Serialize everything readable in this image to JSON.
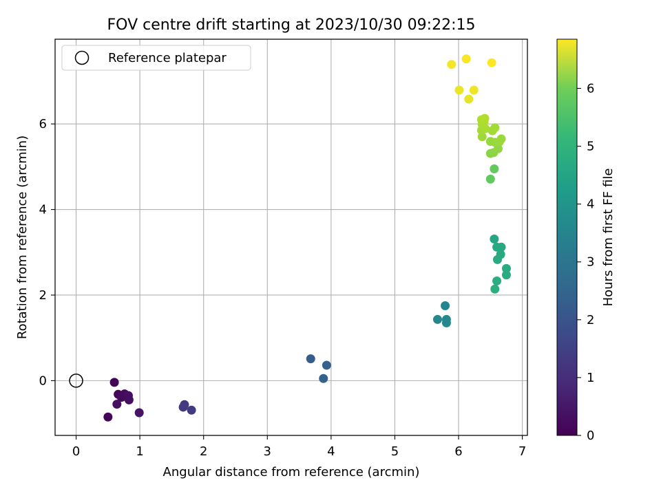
{
  "chart_data": {
    "type": "scatter",
    "title": "FOV centre drift starting at 2023/10/30 09:22:15",
    "xlabel": "Angular distance from reference (arcmin)",
    "ylabel": "Rotation from reference (arcmin)",
    "xlim": [
      -0.33,
      7.08
    ],
    "ylim": [
      -1.28,
      7.98
    ],
    "xticks": [
      0,
      1,
      2,
      3,
      4,
      5,
      6,
      7
    ],
    "yticks": [
      0,
      2,
      4,
      6
    ],
    "grid": true,
    "legend": {
      "placement": "upper-left",
      "entries": [
        "Reference platepar"
      ]
    },
    "reference_point": {
      "x": 0,
      "y": 0,
      "label": "Reference platepar"
    },
    "colorbar": {
      "label": "Hours from first FF file",
      "colormap": "viridis",
      "range": [
        0,
        6.85
      ],
      "ticks": [
        0,
        1,
        2,
        3,
        4,
        5,
        6
      ]
    },
    "points": [
      {
        "x": 0.6,
        "y": -0.04,
        "h": 0.05
      },
      {
        "x": 0.66,
        "y": -0.32,
        "h": 0.1
      },
      {
        "x": 0.71,
        "y": -0.39,
        "h": 0.15
      },
      {
        "x": 0.76,
        "y": -0.31,
        "h": 0.2
      },
      {
        "x": 0.82,
        "y": -0.35,
        "h": 0.25
      },
      {
        "x": 0.83,
        "y": -0.45,
        "h": 0.28
      },
      {
        "x": 0.64,
        "y": -0.55,
        "h": 0.3
      },
      {
        "x": 0.5,
        "y": -0.85,
        "h": 0.08
      },
      {
        "x": 0.99,
        "y": -0.75,
        "h": 0.35
      },
      {
        "x": 1.7,
        "y": -0.56,
        "h": 1.1
      },
      {
        "x": 1.68,
        "y": -0.62,
        "h": 1.15
      },
      {
        "x": 1.81,
        "y": -0.69,
        "h": 1.2
      },
      {
        "x": 3.68,
        "y": 0.51,
        "h": 2.05
      },
      {
        "x": 3.93,
        "y": 0.36,
        "h": 2.1
      },
      {
        "x": 3.88,
        "y": 0.05,
        "h": 2.15
      },
      {
        "x": 5.79,
        "y": 1.75,
        "h": 3.1
      },
      {
        "x": 5.67,
        "y": 1.43,
        "h": 3.15
      },
      {
        "x": 5.81,
        "y": 1.43,
        "h": 3.2
      },
      {
        "x": 5.81,
        "y": 1.35,
        "h": 3.22
      },
      {
        "x": 6.56,
        "y": 3.31,
        "h": 4.05
      },
      {
        "x": 6.6,
        "y": 3.12,
        "h": 4.1
      },
      {
        "x": 6.67,
        "y": 3.12,
        "h": 4.12
      },
      {
        "x": 6.66,
        "y": 2.95,
        "h": 4.15
      },
      {
        "x": 6.61,
        "y": 2.83,
        "h": 4.18
      },
      {
        "x": 6.75,
        "y": 2.62,
        "h": 4.2
      },
      {
        "x": 6.75,
        "y": 2.47,
        "h": 4.22
      },
      {
        "x": 6.6,
        "y": 2.33,
        "h": 4.25
      },
      {
        "x": 6.57,
        "y": 2.14,
        "h": 4.28
      },
      {
        "x": 6.5,
        "y": 4.71,
        "h": 5.15
      },
      {
        "x": 6.56,
        "y": 4.95,
        "h": 5.2
      },
      {
        "x": 6.5,
        "y": 5.31,
        "h": 5.6
      },
      {
        "x": 6.55,
        "y": 5.33,
        "h": 5.65
      },
      {
        "x": 6.62,
        "y": 5.42,
        "h": 5.7
      },
      {
        "x": 6.5,
        "y": 5.59,
        "h": 5.75
      },
      {
        "x": 6.57,
        "y": 5.57,
        "h": 5.78
      },
      {
        "x": 6.64,
        "y": 5.58,
        "h": 5.8
      },
      {
        "x": 6.67,
        "y": 5.65,
        "h": 5.82
      },
      {
        "x": 6.37,
        "y": 5.7,
        "h": 5.85
      },
      {
        "x": 6.53,
        "y": 5.84,
        "h": 5.88
      },
      {
        "x": 6.57,
        "y": 5.91,
        "h": 5.9
      },
      {
        "x": 6.36,
        "y": 5.85,
        "h": 5.92
      },
      {
        "x": 6.42,
        "y": 5.89,
        "h": 5.95
      },
      {
        "x": 6.37,
        "y": 5.99,
        "h": 5.98
      },
      {
        "x": 6.4,
        "y": 6.05,
        "h": 6.0
      },
      {
        "x": 6.36,
        "y": 6.1,
        "h": 6.02
      },
      {
        "x": 6.41,
        "y": 6.13,
        "h": 6.05
      },
      {
        "x": 6.16,
        "y": 6.58,
        "h": 6.6
      },
      {
        "x": 6.01,
        "y": 6.79,
        "h": 6.65
      },
      {
        "x": 6.24,
        "y": 6.79,
        "h": 6.7
      },
      {
        "x": 5.89,
        "y": 7.39,
        "h": 6.75
      },
      {
        "x": 6.12,
        "y": 7.52,
        "h": 6.8
      },
      {
        "x": 6.52,
        "y": 7.43,
        "h": 6.85
      }
    ]
  }
}
